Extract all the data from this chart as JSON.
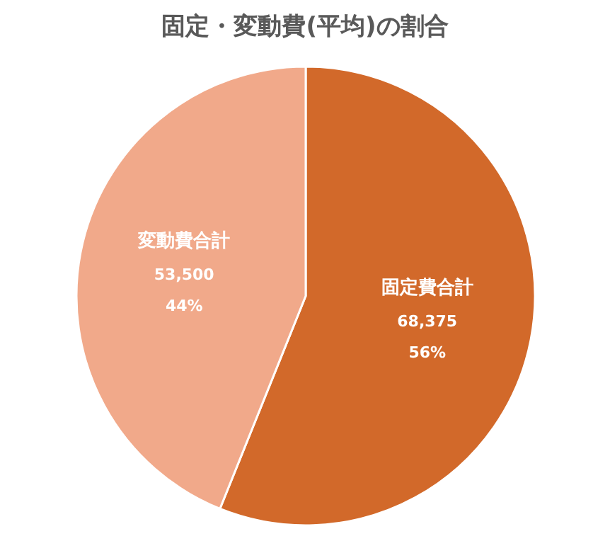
{
  "chart_data": {
    "type": "pie",
    "title": "固定・変動費(平均)の割合",
    "categories": [
      "固定費合計",
      "変動費合計"
    ],
    "values": [
      68375,
      53500
    ],
    "colors": [
      "#d2692a",
      "#f1a98a"
    ],
    "value_labels": [
      "68,375\n56%",
      "53,500\n44%"
    ]
  }
}
